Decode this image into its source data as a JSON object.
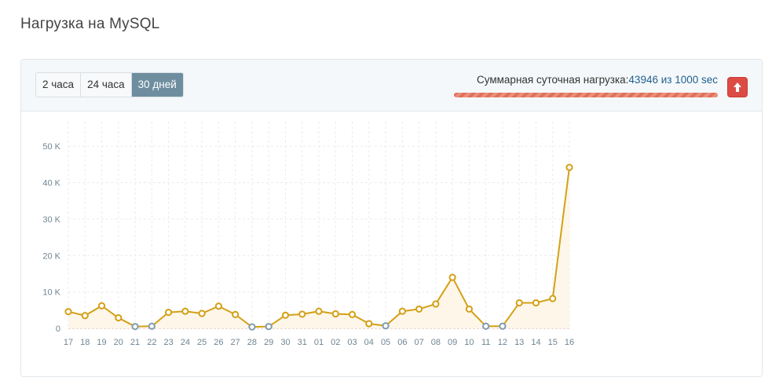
{
  "page": {
    "title": "Нагрузка на MySQL"
  },
  "periods": [
    {
      "label": "2 часа",
      "active": false
    },
    {
      "label": "24 часа",
      "active": false
    },
    {
      "label": "30 дней",
      "active": true
    }
  ],
  "load": {
    "label": "Суммарная суточная нагрузка:",
    "value": "43946 из 1000 sec",
    "bar_fraction": 1.0
  },
  "upgrade": {
    "icon": "arrow-up-icon"
  },
  "colors": {
    "line": "#d4a017",
    "fill": "#fdf6e9",
    "zero_point": "#7f9cb0",
    "grid": "#ebebeb",
    "baseline": "#e0a8a8",
    "bar": "#e0705a",
    "button_active": "#6e8ea0",
    "upgrade_button": "#dd4b45"
  },
  "chart_data": {
    "type": "line",
    "categories": [
      "17",
      "18",
      "19",
      "20",
      "21",
      "22",
      "23",
      "24",
      "25",
      "26",
      "27",
      "28",
      "29",
      "30",
      "31",
      "01",
      "02",
      "03",
      "04",
      "05",
      "06",
      "07",
      "08",
      "09",
      "10",
      "11",
      "12",
      "13",
      "14",
      "15",
      "16"
    ],
    "series": [
      {
        "values": [
          4600,
          3500,
          6200,
          2900,
          500,
          600,
          4400,
          4700,
          4100,
          6100,
          3800,
          400,
          500,
          3600,
          3900,
          4700,
          4000,
          3800,
          1300,
          700,
          4700,
          5300,
          6700,
          14000,
          5300,
          600,
          600,
          7000,
          7000,
          8200,
          44200
        ]
      }
    ],
    "ylim": [
      0,
      55000
    ],
    "y_ticks": [
      0,
      10000,
      20000,
      30000,
      40000,
      50000
    ],
    "y_tick_labels": [
      "0",
      "10 K",
      "20 K",
      "30 K",
      "40 K",
      "50 K"
    ],
    "grid": true
  }
}
